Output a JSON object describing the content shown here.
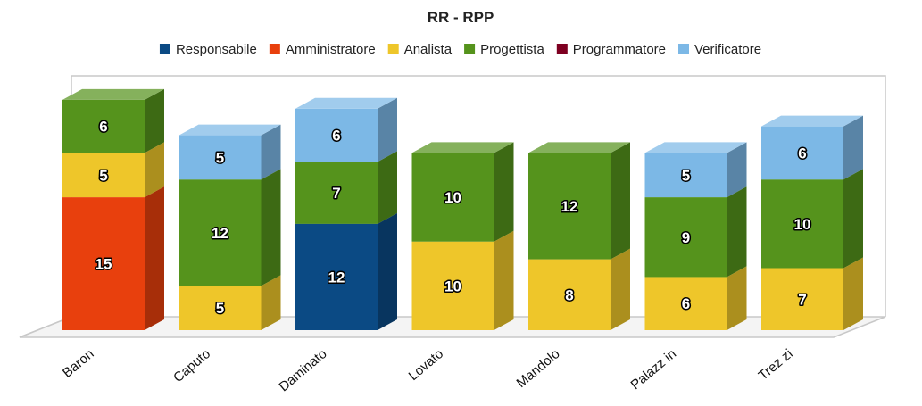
{
  "chart_data": {
    "type": "bar",
    "stacked": true,
    "three_d": true,
    "title": "RR - RPP",
    "legend_position": "top",
    "categories": [
      "Baron",
      "Caputo",
      "Daminato",
      "Lovato",
      "Mandolo",
      "Palazz in",
      "Trez zi"
    ],
    "series": [
      {
        "name": "Responsabile",
        "color": "#0B4A84",
        "values": [
          0,
          0,
          12,
          0,
          0,
          0,
          0
        ]
      },
      {
        "name": "Amministratore",
        "color": "#E8400D",
        "values": [
          15,
          0,
          0,
          0,
          0,
          0,
          0
        ]
      },
      {
        "name": "Analista",
        "color": "#EEC62A",
        "values": [
          5,
          5,
          0,
          10,
          8,
          6,
          7
        ]
      },
      {
        "name": "Progettista",
        "color": "#55931C",
        "values": [
          6,
          12,
          7,
          10,
          12,
          9,
          10
        ]
      },
      {
        "name": "Programmatore",
        "color": "#7E0021",
        "values": [
          0,
          0,
          0,
          0,
          0,
          0,
          0
        ]
      },
      {
        "name": "Verificatore",
        "color": "#7CB8E6",
        "values": [
          0,
          5,
          6,
          0,
          0,
          5,
          6
        ]
      }
    ],
    "ylim": [
      0,
      28
    ],
    "grid": false,
    "xlabel": "",
    "ylabel": ""
  }
}
